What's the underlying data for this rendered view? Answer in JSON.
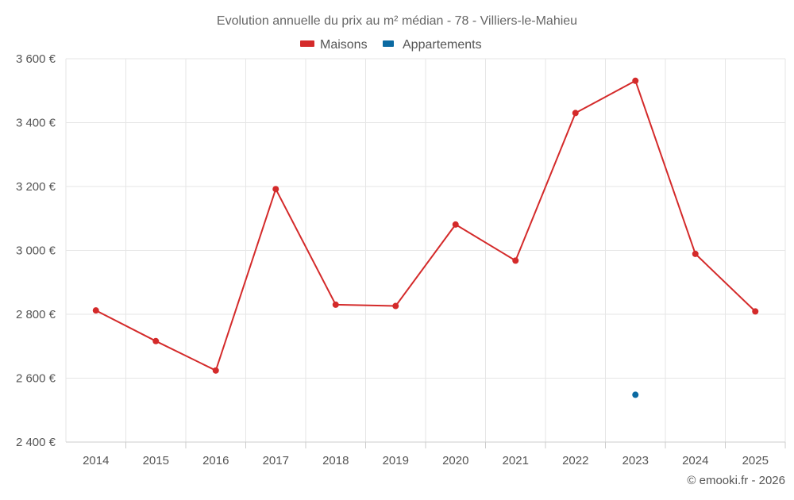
{
  "chart_data": {
    "type": "line",
    "title": "Evolution annuelle du prix au m² médian - 78 - Villiers-le-Mahieu",
    "categories": [
      "2014",
      "2015",
      "2016",
      "2017",
      "2018",
      "2019",
      "2020",
      "2021",
      "2022",
      "2023",
      "2024",
      "2025"
    ],
    "series": [
      {
        "name": "Maisons",
        "color": "#d42a2a",
        "values": [
          2812,
          2716,
          2624,
          3192,
          2830,
          2826,
          3081,
          2968,
          3430,
          3531,
          2989,
          2809
        ]
      },
      {
        "name": "Appartements",
        "color": "#0b6aa2",
        "values": [
          null,
          null,
          null,
          null,
          null,
          null,
          null,
          null,
          null,
          2548,
          null,
          null
        ]
      }
    ],
    "ylim": [
      2400,
      3600
    ],
    "yticks": [
      2400,
      2600,
      2800,
      3000,
      3200,
      3400,
      3600
    ],
    "ytick_labels": [
      "2 400 €",
      "2 600 €",
      "2 800 €",
      "3 000 €",
      "3 200 €",
      "3 400 €",
      "3 600 €"
    ],
    "xlabel": "",
    "ylabel": "",
    "legend_position": "top-center",
    "grid": true
  },
  "credit": "© emooki.fr - 2026"
}
